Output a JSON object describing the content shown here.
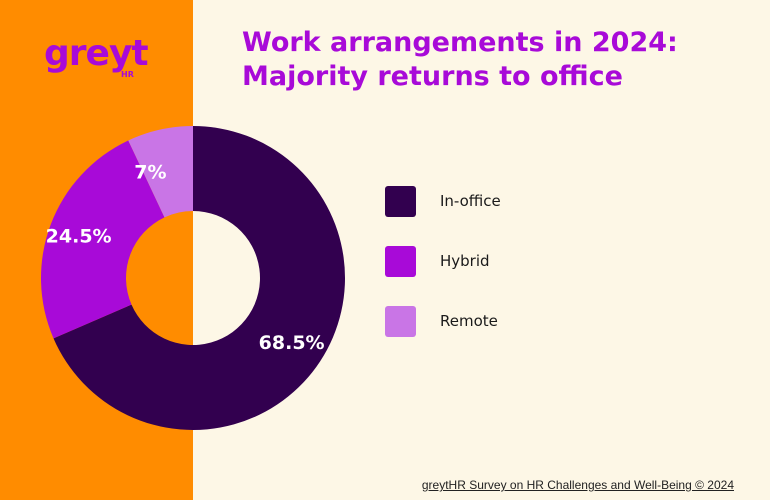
{
  "brand": {
    "logo_text": "greyt",
    "logo_sub": "HR",
    "logo_color": "#a80ad8",
    "band_color": "#ff8c00",
    "background_color": "#fdf7e6"
  },
  "chart_data": {
    "type": "pie",
    "subtype": "donut",
    "title_line1": "Work arrangements in 2024:",
    "title_line2": "Majority returns to office",
    "categories": [
      "In-office",
      "Hybrid",
      "Remote"
    ],
    "values": [
      68.5,
      24.5,
      7
    ],
    "value_labels": [
      "68.5%",
      "24.5%",
      "7%"
    ],
    "colors": [
      "#32004f",
      "#a80ad8",
      "#c975e6"
    ],
    "legend_position": "right"
  },
  "source": "greytHR Survey on HR Challenges and Well-Being © 2024"
}
